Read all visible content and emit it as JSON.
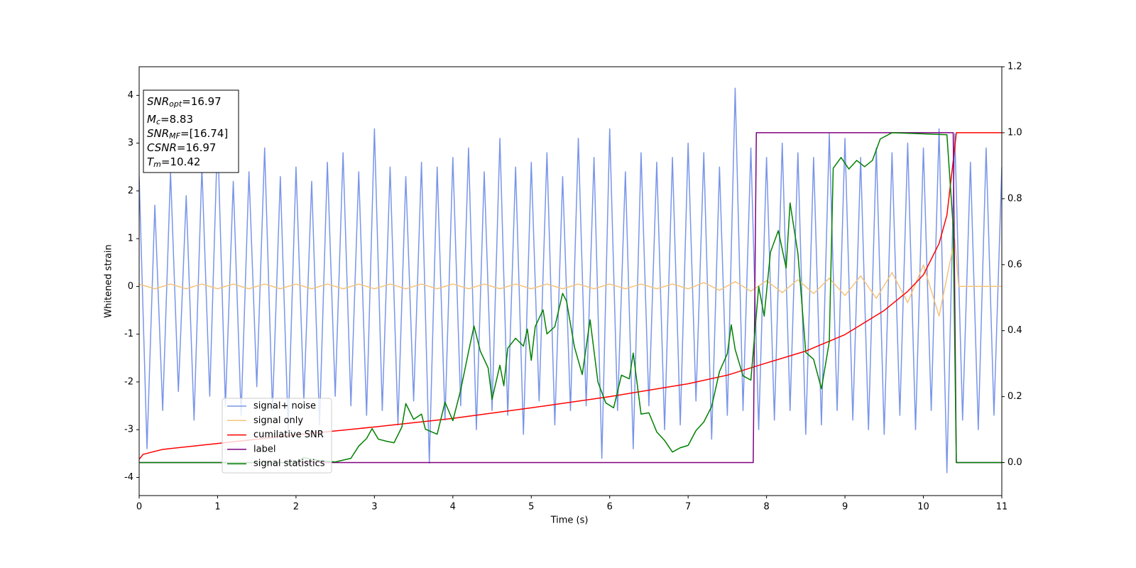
{
  "chart_data": {
    "type": "line",
    "xlabel": "Time (s)",
    "ylabel": "Whitened strain",
    "xlim": [
      0,
      11
    ],
    "ylim": [
      -4.38,
      4.6
    ],
    "y2lim": [
      -0.1,
      1.2
    ],
    "xticks": [
      0,
      1,
      2,
      3,
      4,
      5,
      6,
      7,
      8,
      9,
      10,
      11
    ],
    "yticks": [
      -4,
      -3,
      -2,
      -1,
      0,
      1,
      2,
      3,
      4
    ],
    "y2ticks": [
      {
        "value": 0,
        "label": "0.0"
      },
      {
        "value": 0.2,
        "label": "0.2"
      },
      {
        "value": 0.4,
        "label": "0.4"
      },
      {
        "value": 0.6,
        "label": "0.6"
      },
      {
        "value": 0.8,
        "label": "0.8"
      },
      {
        "value": 1.0,
        "label": "1.0"
      },
      {
        "value": 1.2,
        "label": "1.2"
      }
    ],
    "legend": "lower left",
    "textbox": [
      {
        "symbol": "SNR",
        "sub": "opt",
        "value": "=16.97"
      },
      {
        "symbol": "M",
        "sub": "c",
        "value": "=8.83"
      },
      {
        "symbol": "SNR",
        "sub": "MF",
        "value": "=[16.74]"
      },
      {
        "symbol": "CSNR",
        "value": "=16.97"
      },
      {
        "symbol": "T",
        "sub": "m",
        "value": "=10.42"
      }
    ],
    "series": [
      {
        "name": "signal+ noise",
        "color": "#7995e9",
        "x": [
          0,
          0.1,
          0.2,
          0.3,
          0.4,
          0.5,
          0.6,
          0.7,
          0.8,
          0.9,
          1,
          1.1,
          1.2,
          1.3,
          1.4,
          1.5,
          1.6,
          1.7,
          1.8,
          1.9,
          2,
          2.1,
          2.2,
          2.3,
          2.4,
          2.5,
          2.6,
          2.7,
          2.8,
          2.9,
          3,
          3.1,
          3.2,
          3.3,
          3.4,
          3.5,
          3.6,
          3.7,
          3.8,
          3.9,
          4,
          4.1,
          4.2,
          4.3,
          4.4,
          4.5,
          4.6,
          4.7,
          4.8,
          4.9,
          5,
          5.1,
          5.2,
          5.3,
          5.4,
          5.5,
          5.6,
          5.7,
          5.8,
          5.9,
          6,
          6.1,
          6.2,
          6.3,
          6.4,
          6.5,
          6.6,
          6.7,
          6.8,
          6.9,
          7,
          7.1,
          7.2,
          7.3,
          7.4,
          7.5,
          7.6,
          7.7,
          7.8,
          7.9,
          8,
          8.1,
          8.2,
          8.3,
          8.4,
          8.5,
          8.6,
          8.7,
          8.8,
          8.9,
          9,
          9.1,
          9.2,
          9.3,
          9.4,
          9.5,
          9.6,
          9.7,
          9.8,
          9.9,
          10,
          10.1,
          10.2,
          10.3,
          10.4,
          10.5,
          10.6,
          10.7,
          10.8,
          10.9,
          11
        ],
        "values": [
          2.3,
          -3.4,
          1.7,
          -2.6,
          2.4,
          -2.2,
          1.9,
          -2.8,
          2.5,
          -2.3,
          3.2,
          -2.5,
          2.2,
          -2.7,
          2.4,
          -2.1,
          2.9,
          -2.6,
          2.3,
          -3.0,
          2.5,
          -2.4,
          2.2,
          -2.9,
          2.6,
          -2.3,
          2.8,
          -2.5,
          2.4,
          -2.7,
          3.3,
          -2.6,
          2.5,
          -2.9,
          2.3,
          -2.4,
          2.6,
          -3.7,
          2.5,
          -2.8,
          2.7,
          -2.5,
          2.9,
          -3.0,
          2.4,
          -2.6,
          3.1,
          -2.7,
          2.5,
          -3.1,
          2.6,
          -2.4,
          2.8,
          -2.9,
          2.3,
          -2.6,
          3.1,
          -2.5,
          2.7,
          -3.6,
          3.3,
          -2.6,
          2.4,
          -3.4,
          2.8,
          -2.5,
          2.6,
          -3.0,
          2.7,
          -2.9,
          3.0,
          -2.4,
          2.8,
          -3.2,
          2.5,
          -2.7,
          4.15,
          -2.6,
          2.9,
          -3.0,
          2.7,
          -2.8,
          3.0,
          -2.6,
          2.8,
          -3.1,
          2.7,
          -2.9,
          3.2,
          -2.6,
          3.1,
          -2.8,
          2.7,
          -3.0,
          2.9,
          -3.1,
          2.8,
          -2.7,
          3.0,
          -3.0,
          2.9,
          -2.6,
          3.3,
          -3.9,
          3.2,
          -2.8,
          2.6,
          -3.0,
          2.9,
          -2.7,
          2.5
        ]
      },
      {
        "name": "signal only",
        "color": "#f5c37a",
        "x": [
          0,
          0.2,
          0.4,
          0.6,
          0.8,
          1,
          1.2,
          1.4,
          1.6,
          1.8,
          2,
          2.2,
          2.4,
          2.6,
          2.8,
          3,
          3.2,
          3.4,
          3.6,
          3.8,
          4,
          4.2,
          4.4,
          4.6,
          4.8,
          5,
          5.2,
          5.4,
          5.6,
          5.8,
          6,
          6.2,
          6.4,
          6.6,
          6.8,
          7,
          7.2,
          7.4,
          7.6,
          7.8,
          8,
          8.2,
          8.4,
          8.6,
          8.8,
          9,
          9.2,
          9.4,
          9.6,
          9.8,
          10,
          10.2,
          10.4,
          10.45,
          11
        ],
        "values": [
          0.05,
          -0.05,
          0.05,
          -0.05,
          0.05,
          -0.05,
          0.05,
          -0.05,
          0.05,
          -0.05,
          0.05,
          -0.05,
          0.05,
          -0.05,
          0.05,
          -0.05,
          0.05,
          -0.05,
          0.05,
          -0.05,
          0.05,
          -0.05,
          0.05,
          -0.05,
          0.05,
          -0.05,
          0.05,
          -0.05,
          0.05,
          -0.05,
          0.05,
          -0.05,
          0.05,
          -0.05,
          0.05,
          -0.05,
          0.08,
          -0.08,
          0.1,
          -0.1,
          0.12,
          -0.13,
          0.14,
          -0.15,
          0.17,
          -0.19,
          0.22,
          -0.25,
          0.29,
          -0.34,
          0.45,
          -0.62,
          1.0,
          0,
          0
        ]
      },
      {
        "name": "cumilative SNR",
        "color": "#ff0000",
        "axis": "y2",
        "x": [
          0,
          0.05,
          0.3,
          1,
          2,
          3,
          4,
          5,
          6,
          7,
          7.5,
          8,
          8.5,
          9,
          9.5,
          9.8,
          10,
          10.2,
          10.3,
          10.4,
          10.42,
          11
        ],
        "values": [
          0.01,
          0.025,
          0.04,
          0.058,
          0.084,
          0.108,
          0.134,
          0.166,
          0.2,
          0.239,
          0.265,
          0.302,
          0.338,
          0.388,
          0.461,
          0.519,
          0.569,
          0.664,
          0.75,
          0.955,
          1.0,
          1.0
        ]
      },
      {
        "name": "label",
        "color": "#800080",
        "axis": "y2",
        "x": [
          0,
          7.83,
          7.87,
          10.38,
          10.42,
          11
        ],
        "values": [
          0,
          0,
          1,
          1,
          0,
          0
        ]
      },
      {
        "name": "signal statistics",
        "color": "#008000",
        "axis": "y2",
        "x": [
          0,
          2.0,
          2.1,
          2.3,
          2.5,
          2.7,
          2.8,
          2.9,
          2.97,
          3.05,
          3.15,
          3.25,
          3.35,
          3.4,
          3.5,
          3.6,
          3.65,
          3.8,
          3.9,
          4.0,
          4.1,
          4.2,
          4.27,
          4.35,
          4.45,
          4.5,
          4.6,
          4.65,
          4.7,
          4.8,
          4.9,
          4.95,
          5.0,
          5.05,
          5.15,
          5.2,
          5.3,
          5.4,
          5.45,
          5.55,
          5.65,
          5.75,
          5.85,
          5.95,
          6.05,
          6.15,
          6.25,
          6.3,
          6.4,
          6.5,
          6.6,
          6.7,
          6.8,
          6.9,
          7.0,
          7.1,
          7.2,
          7.3,
          7.4,
          7.5,
          7.55,
          7.6,
          7.7,
          7.8,
          7.9,
          7.97,
          8.05,
          8.15,
          8.25,
          8.3,
          8.4,
          8.5,
          8.6,
          8.7,
          8.8,
          8.85,
          8.95,
          9.05,
          9.15,
          9.25,
          9.35,
          9.45,
          9.6,
          10.3,
          10.38,
          10.42,
          11
        ],
        "values": [
          0,
          0,
          0.015,
          0.006,
          0.002,
          0.013,
          0.05,
          0.073,
          0.103,
          0.071,
          0.065,
          0.06,
          0.108,
          0.179,
          0.131,
          0.147,
          0.101,
          0.086,
          0.183,
          0.127,
          0.22,
          0.336,
          0.414,
          0.338,
          0.287,
          0.192,
          0.295,
          0.233,
          0.347,
          0.377,
          0.353,
          0.405,
          0.31,
          0.412,
          0.463,
          0.39,
          0.412,
          0.513,
          0.489,
          0.351,
          0.267,
          0.433,
          0.244,
          0.181,
          0.166,
          0.265,
          0.254,
          0.332,
          0.147,
          0.151,
          0.093,
          0.067,
          0.032,
          0.045,
          0.052,
          0.097,
          0.123,
          0.17,
          0.276,
          0.33,
          0.418,
          0.343,
          0.263,
          0.25,
          0.534,
          0.444,
          0.638,
          0.703,
          0.59,
          0.787,
          0.634,
          0.334,
          0.313,
          0.224,
          0.366,
          0.892,
          0.925,
          0.89,
          0.916,
          0.897,
          0.916,
          0.981,
          1.0,
          0.994,
          0.713,
          0,
          0
        ]
      }
    ]
  }
}
